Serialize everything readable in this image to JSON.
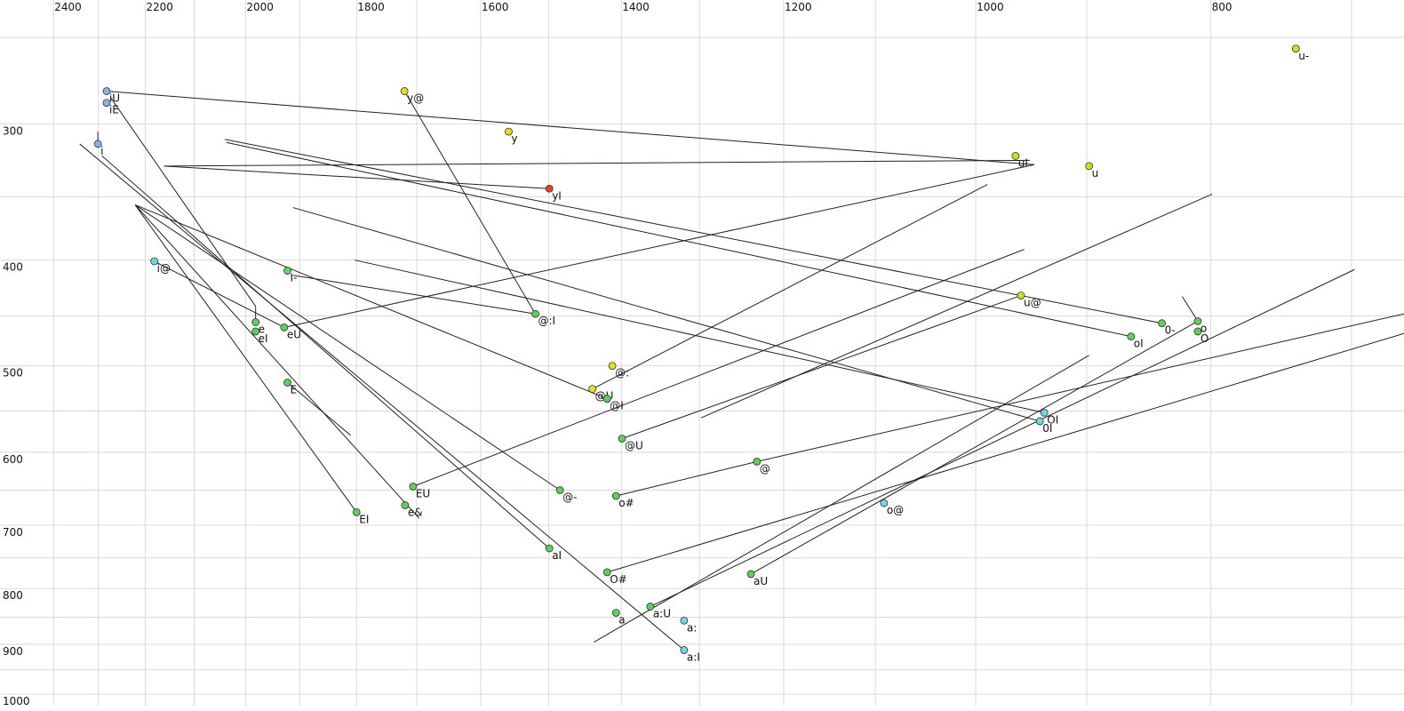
{
  "chart_data": {
    "type": "formant",
    "log_x": true,
    "log_y": true,
    "x_reversed": true,
    "xlim": [
      2525,
      666
    ],
    "ylim": [
      231,
      1036
    ],
    "xticks": [
      2400,
      2200,
      2000,
      1800,
      1600,
      1400,
      1200,
      1000,
      800
    ],
    "yticks": [
      300,
      400,
      500,
      600,
      700,
      800,
      900,
      1000
    ],
    "xgrid_minor": [
      2300,
      2100,
      1900,
      1700,
      1500,
      1300,
      1100,
      900,
      700
    ],
    "ygrid_minor": [
      250,
      350,
      450,
      550,
      650,
      750,
      850,
      950
    ],
    "grid": true,
    "grid_color": "#d9d9d9",
    "line_color": "#222222",
    "points": [
      {
        "label": "iU",
        "f2": 2282,
        "f1": 280,
        "color": "#86b4e8"
      },
      {
        "label": "iE",
        "f2": 2282,
        "f1": 287,
        "color": "#86b4e8"
      },
      {
        "label": "i",
        "f2": 2301,
        "f1": 313,
        "color": "#86b4e8"
      },
      {
        "label": "y@",
        "f2": 1720,
        "f1": 280,
        "color": "#e2e21c"
      },
      {
        "label": "y",
        "f2": 1558,
        "f1": 305,
        "color": "#e2e21c"
      },
      {
        "label": "yI",
        "f2": 1499,
        "f1": 344,
        "color": "#e0451a"
      },
      {
        "label": "uI",
        "f2": 963,
        "f1": 321,
        "color": "#c6e21c"
      },
      {
        "label": "u",
        "f2": 898,
        "f1": 328,
        "color": "#c6e21c"
      },
      {
        "label": "u-",
        "f2": 738,
        "f1": 256,
        "color": "#c6e21c"
      },
      {
        "label": "i@",
        "f2": 2181,
        "f1": 401,
        "color": "#72d6e0"
      },
      {
        "label": "I-",
        "f2": 1922,
        "f1": 409,
        "color": "#62d662"
      },
      {
        "label": "e",
        "f2": 1981,
        "f1": 456,
        "color": "#5ccf5c"
      },
      {
        "label": "eI",
        "f2": 1981,
        "f1": 465,
        "color": "#5ccf5c"
      },
      {
        "label": "eU",
        "f2": 1928,
        "f1": 461,
        "color": "#5ccf5c"
      },
      {
        "label": "@:I",
        "f2": 1519,
        "f1": 448,
        "color": "#5ccf5c"
      },
      {
        "label": "u@",
        "f2": 958,
        "f1": 431,
        "color": "#c6e21c"
      },
      {
        "label": "0-",
        "f2": 838,
        "f1": 457,
        "color": "#5ccf5c"
      },
      {
        "label": "o",
        "f2": 810,
        "f1": 455,
        "color": "#5ccf5c"
      },
      {
        "label": "O",
        "f2": 810,
        "f1": 465,
        "color": "#5ccf5c"
      },
      {
        "label": "oI",
        "f2": 863,
        "f1": 470,
        "color": "#5ccf5c"
      },
      {
        "label": "@:",
        "f2": 1412,
        "f1": 500,
        "color": "#e2e21c"
      },
      {
        "label": "@U",
        "f2": 1439,
        "f1": 525,
        "color": "#e2e21c"
      },
      {
        "label": "@I",
        "f2": 1419,
        "f1": 536,
        "color": "#5ccf5c"
      },
      {
        "label": "E",
        "f2": 1922,
        "f1": 518,
        "color": "#5ccf5c"
      },
      {
        "label": "OI",
        "f2": 937,
        "f1": 552,
        "color": "#72d6e0"
      },
      {
        "label": "0I",
        "f2": 941,
        "f1": 562,
        "color": "#72d6e0"
      },
      {
        "label": "@U",
        "f2": 1399,
        "f1": 583,
        "color": "#5ccf5c"
      },
      {
        "label": "@",
        "f2": 1231,
        "f1": 612,
        "color": "#5ccf5c"
      },
      {
        "label": "EU",
        "f2": 1706,
        "f1": 645,
        "color": "#5ccf5c"
      },
      {
        "label": "@-",
        "f2": 1484,
        "f1": 650,
        "color": "#5ccf5c"
      },
      {
        "label": "o#",
        "f2": 1407,
        "f1": 658,
        "color": "#5ccf5c"
      },
      {
        "label": "e&",
        "f2": 1719,
        "f1": 671,
        "color": "#5ccf5c"
      },
      {
        "label": "EI",
        "f2": 1800,
        "f1": 681,
        "color": "#5ccf5c"
      },
      {
        "label": "o@",
        "f2": 1091,
        "f1": 668,
        "color": "#72d6e0"
      },
      {
        "label": "aI",
        "f2": 1499,
        "f1": 735,
        "color": "#5ccf5c"
      },
      {
        "label": "O#",
        "f2": 1419,
        "f1": 773,
        "color": "#5ccf5c"
      },
      {
        "label": "aU",
        "f2": 1238,
        "f1": 776,
        "color": "#5ccf5c"
      },
      {
        "label": "a",
        "f2": 1407,
        "f1": 842,
        "color": "#5ccf5c"
      },
      {
        "label": "a:U",
        "f2": 1362,
        "f1": 831,
        "color": "#5ccf5c"
      },
      {
        "label": "a:",
        "f2": 1319,
        "f1": 856,
        "color": "#72d6e0"
      },
      {
        "label": "a:I",
        "f2": 1319,
        "f1": 911,
        "color": "#72d6e0"
      }
    ],
    "trajectories": [
      {
        "f2": [
          2282,
          946
        ],
        "f1": [
          280,
          327
        ]
      },
      {
        "f2": [
          2273,
          1981
        ],
        "f1": [
          284,
          441
        ]
      },
      {
        "f2": [
          1720,
          1519
        ],
        "f1": [
          280,
          448
        ]
      },
      {
        "f2": [
          2161,
          950
        ],
        "f1": [
          328,
          324
        ]
      },
      {
        "f2": [
          2161,
          1499
        ],
        "f1": [
          328,
          344
        ]
      },
      {
        "f2": [
          2040,
          838
        ],
        "f1": [
          310,
          457
        ]
      },
      {
        "f2": [
          2037,
          863
        ],
        "f1": [
          312,
          470
        ]
      },
      {
        "f2": [
          2341,
          1319
        ],
        "f1": [
          313,
          911
        ]
      },
      {
        "f2": [
          2292,
          1499
        ],
        "f1": [
          321,
          735
        ]
      },
      {
        "f2": [
          2221,
          1484
        ],
        "f1": [
          356,
          650
        ]
      },
      {
        "f2": [
          2221,
          1419
        ],
        "f1": [
          356,
          536
        ]
      },
      {
        "f2": [
          2221,
          1800
        ],
        "f1": [
          356,
          681
        ]
      },
      {
        "f2": [
          2221,
          1696
        ],
        "f1": [
          356,
          690
        ]
      },
      {
        "f2": [
          1912,
          941
        ],
        "f1": [
          358,
          562
        ]
      },
      {
        "f2": [
          1803,
          937
        ],
        "f1": [
          400,
          552
        ]
      },
      {
        "f2": [
          2181,
          1928
        ],
        "f1": [
          401,
          461
        ]
      },
      {
        "f2": [
          1928,
          946
        ],
        "f1": [
          461,
          327
        ]
      },
      {
        "f2": [
          1912,
          1519
        ],
        "f1": [
          413,
          448
        ]
      },
      {
        "f2": [
          1922,
          1810
        ],
        "f1": [
          518,
          579
        ]
      },
      {
        "f2": [
          1981,
          1981
        ],
        "f1": [
          441,
          456
        ]
      },
      {
        "f2": [
          2301,
          2301
        ],
        "f1": [
          305,
          312
        ]
      },
      {
        "f2": [
          1439,
          989
        ],
        "f1": [
          525,
          341
        ]
      },
      {
        "f2": [
          1706,
          955
        ],
        "f1": [
          645,
          391
        ]
      },
      {
        "f2": [
          1399,
          958
        ],
        "f1": [
          583,
          431
        ]
      },
      {
        "f2": [
          1298,
          799
        ],
        "f1": [
          558,
          348
        ]
      },
      {
        "f2": [
          1407,
          1231
        ],
        "f1": [
          658,
          612
        ]
      },
      {
        "f2": [
          1231,
          666
        ],
        "f1": [
          612,
          448
        ]
      },
      {
        "f2": [
          1419,
          666
        ],
        "f1": [
          773,
          467
        ]
      },
      {
        "f2": [
          1437,
          898
        ],
        "f1": [
          896,
          489
        ]
      },
      {
        "f2": [
          1362,
          698
        ],
        "f1": [
          831,
          408
        ]
      },
      {
        "f2": [
          1238,
          810
        ],
        "f1": [
          776,
          455
        ]
      },
      {
        "f2": [
          822,
          810
        ],
        "f1": [
          432,
          455
        ]
      }
    ]
  }
}
